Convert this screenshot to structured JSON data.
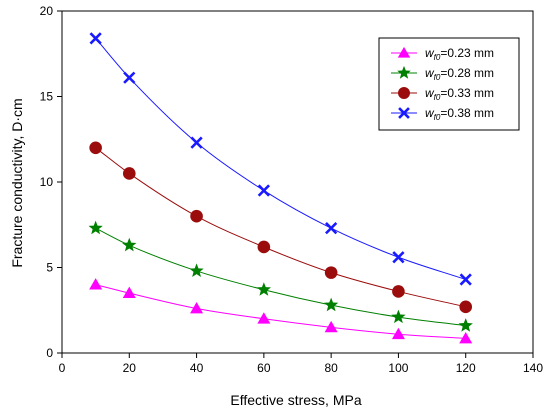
{
  "chart_data": {
    "type": "line",
    "title": "",
    "xlabel": "Effective stress, MPa",
    "ylabel": "Fracture conductivity, D·cm",
    "xlim": [
      0,
      140
    ],
    "ylim": [
      0,
      20
    ],
    "xticks": [
      0,
      20,
      40,
      60,
      80,
      100,
      120,
      140
    ],
    "yticks": [
      0,
      5,
      10,
      15,
      20
    ],
    "grid": false,
    "legend_position": "top-right",
    "x": [
      10,
      20,
      40,
      60,
      80,
      100,
      120
    ],
    "series": [
      {
        "name_prefix": "w",
        "name_subscript": "f0",
        "name_suffix": "=0.23 mm",
        "color": "#ff00ff",
        "marker": "triangle",
        "values": [
          4.0,
          3.5,
          2.6,
          2.0,
          1.5,
          1.1,
          0.85
        ]
      },
      {
        "name_prefix": "w",
        "name_subscript": "f0",
        "name_suffix": "=0.28 mm",
        "color": "#008000",
        "marker": "star",
        "values": [
          7.3,
          6.3,
          4.8,
          3.7,
          2.8,
          2.1,
          1.6
        ]
      },
      {
        "name_prefix": "w",
        "name_subscript": "f0",
        "name_suffix": "=0.33 mm",
        "color": "#9b0d0d",
        "marker": "circle",
        "values": [
          12.0,
          10.5,
          8.0,
          6.2,
          4.7,
          3.6,
          2.7
        ]
      },
      {
        "name_prefix": "w",
        "name_subscript": "f0",
        "name_suffix": "=0.38 mm",
        "color": "#1a1aff",
        "marker": "x",
        "values": [
          18.4,
          16.1,
          12.3,
          9.5,
          7.3,
          5.6,
          4.3
        ]
      }
    ]
  }
}
